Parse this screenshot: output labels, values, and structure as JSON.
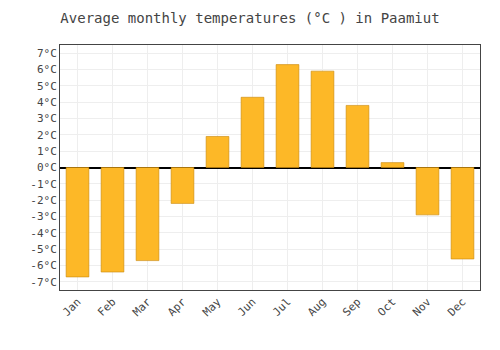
{
  "chart_data": {
    "type": "bar",
    "title": "Average monthly temperatures (°C ) in Paamiut",
    "categories": [
      "Jan",
      "Feb",
      "Mar",
      "Apr",
      "May",
      "Jun",
      "Jul",
      "Aug",
      "Sep",
      "Oct",
      "Nov",
      "Dec"
    ],
    "values": [
      -6.7,
      -6.4,
      -5.7,
      -2.2,
      1.9,
      4.3,
      6.3,
      5.9,
      3.8,
      0.3,
      -2.9,
      -5.6
    ],
    "color": "#FDB827",
    "ylim": [
      -7.5,
      7.5
    ],
    "yticks": [
      {
        "value": -7,
        "label": "-7°C"
      },
      {
        "value": -6,
        "label": "-6°C"
      },
      {
        "value": -5,
        "label": "-5°C"
      },
      {
        "value": -4,
        "label": "-4°C"
      },
      {
        "value": -3,
        "label": "-3°C"
      },
      {
        "value": -2,
        "label": "-2°C"
      },
      {
        "value": -1,
        "label": "-1°C"
      },
      {
        "value": 0,
        "label": "0°C"
      },
      {
        "value": 1,
        "label": "1°C"
      },
      {
        "value": 2,
        "label": "2°C"
      },
      {
        "value": 3,
        "label": "3°C"
      },
      {
        "value": 4,
        "label": "4°C"
      },
      {
        "value": 5,
        "label": "5°C"
      },
      {
        "value": 6,
        "label": "6°C"
      },
      {
        "value": 7,
        "label": "7°C"
      }
    ],
    "grid": true
  }
}
